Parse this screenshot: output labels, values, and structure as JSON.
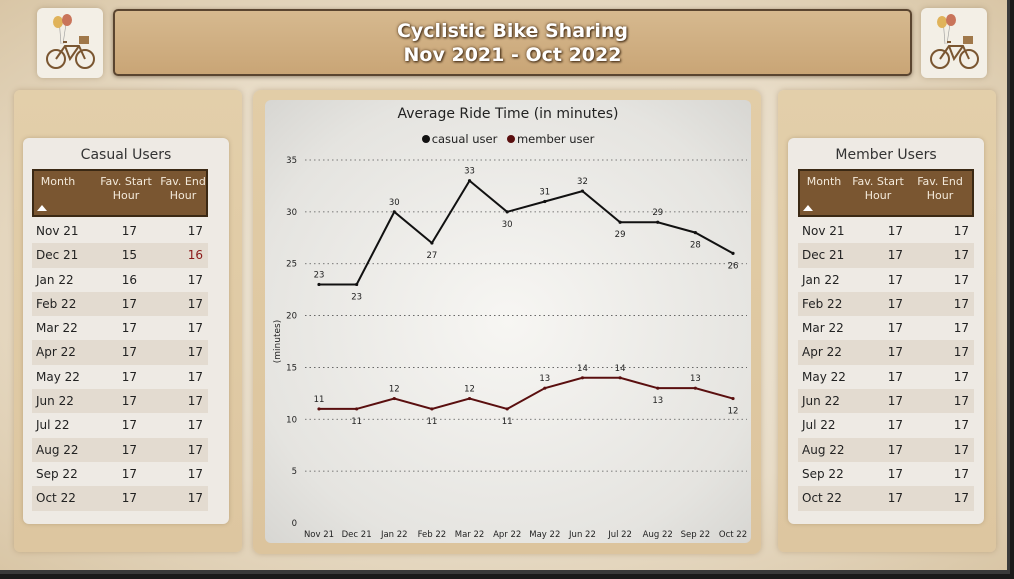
{
  "header": {
    "title_line1": "Cyclistic Bike Sharing",
    "title_line2": "Nov 2021  - Oct 2022"
  },
  "icons": {
    "logo": "bicycle-with-balloons-icon"
  },
  "casual": {
    "title": "Casual Users",
    "headers": {
      "month": "Month",
      "start": "Fav. Start Hour",
      "end": "Fav. End Hour"
    },
    "rows": [
      {
        "month": "Nov 21",
        "start": "17",
        "end": "17"
      },
      {
        "month": "Dec 21",
        "start": "15",
        "end": "16"
      },
      {
        "month": "Jan 22",
        "start": "16",
        "end": "17"
      },
      {
        "month": "Feb 22",
        "start": "17",
        "end": "17"
      },
      {
        "month": "Mar 22",
        "start": "17",
        "end": "17"
      },
      {
        "month": "Apr 22",
        "start": "17",
        "end": "17"
      },
      {
        "month": "May 22",
        "start": "17",
        "end": "17"
      },
      {
        "month": "Jun 22",
        "start": "17",
        "end": "17"
      },
      {
        "month": "Jul 22",
        "start": "17",
        "end": "17"
      },
      {
        "month": "Aug 22",
        "start": "17",
        "end": "17"
      },
      {
        "month": "Sep 22",
        "start": "17",
        "end": "17"
      },
      {
        "month": "Oct 22",
        "start": "17",
        "end": "17"
      }
    ]
  },
  "member": {
    "title": "Member Users",
    "headers": {
      "month": "Month",
      "start": "Fav. Start Hour",
      "end": "Fav. End Hour"
    },
    "rows": [
      {
        "month": "Nov 21",
        "start": "17",
        "end": "17"
      },
      {
        "month": "Dec 21",
        "start": "17",
        "end": "17"
      },
      {
        "month": "Jan 22",
        "start": "17",
        "end": "17"
      },
      {
        "month": "Feb 22",
        "start": "17",
        "end": "17"
      },
      {
        "month": "Mar 22",
        "start": "17",
        "end": "17"
      },
      {
        "month": "Apr 22",
        "start": "17",
        "end": "17"
      },
      {
        "month": "May 22",
        "start": "17",
        "end": "17"
      },
      {
        "month": "Jun 22",
        "start": "17",
        "end": "17"
      },
      {
        "month": "Jul 22",
        "start": "17",
        "end": "17"
      },
      {
        "month": "Aug 22",
        "start": "17",
        "end": "17"
      },
      {
        "month": "Sep 22",
        "start": "17",
        "end": "17"
      },
      {
        "month": "Oct 22",
        "start": "17",
        "end": "17"
      }
    ]
  },
  "chart_data": {
    "type": "line",
    "title": "Average Ride Time (in minutes)",
    "ylabel": "(minutes)",
    "xlabel": "",
    "categories": [
      "Nov 21",
      "Dec 21",
      "Jan 22",
      "Feb 22",
      "Mar 22",
      "Apr 22",
      "May 22",
      "Jun 22",
      "Jul 22",
      "Aug 22",
      "Sep 22",
      "Oct 22"
    ],
    "series": [
      {
        "name": "casual user",
        "color": "#111111",
        "values": [
          23,
          23,
          30,
          27,
          33,
          30,
          31,
          32,
          29,
          29,
          28,
          26
        ]
      },
      {
        "name": "member user",
        "color": "#5a0f0f",
        "values": [
          11,
          11,
          12,
          11,
          12,
          11,
          13,
          14,
          14,
          13,
          13,
          12
        ]
      }
    ],
    "ylim": [
      0,
      35
    ],
    "yticks": [
      0,
      5,
      10,
      15,
      20,
      25,
      30,
      35
    ],
    "grid": true,
    "legend": "top-center"
  }
}
